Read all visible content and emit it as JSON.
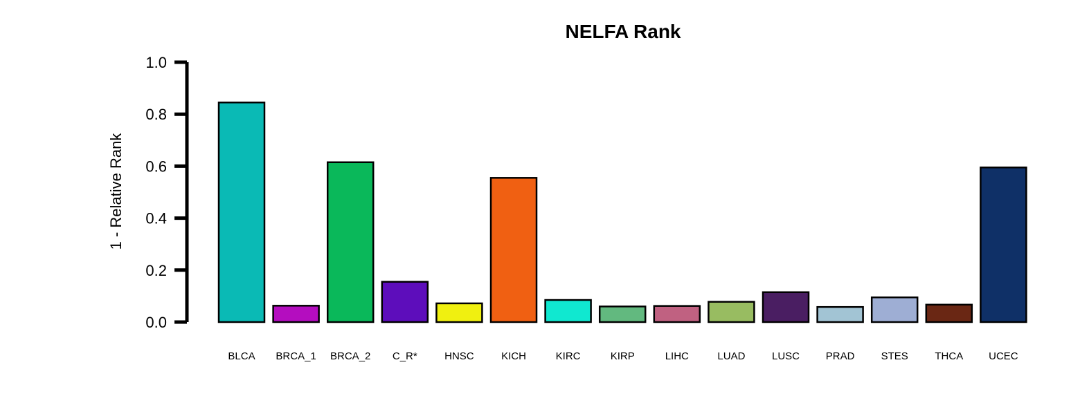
{
  "chart_data": {
    "type": "bar",
    "title": "NELFA Rank",
    "xlabel": "",
    "ylabel": "1 - Relative Rank",
    "ylim": [
      0,
      1.0
    ],
    "yticks": [
      "0.0",
      "0.2",
      "0.4",
      "0.6",
      "0.8",
      "1.0"
    ],
    "grid": false,
    "categories": [
      "BLCA",
      "BRCA_1",
      "BRCA_2",
      "C_R*",
      "HNSC",
      "KICH",
      "KIRC",
      "KIRP",
      "LIHC",
      "LUAD",
      "LUSC",
      "PRAD",
      "STES",
      "THCA",
      "UCEC"
    ],
    "values": [
      0.845,
      0.063,
      0.615,
      0.155,
      0.072,
      0.555,
      0.085,
      0.06,
      0.062,
      0.078,
      0.115,
      0.058,
      0.095,
      0.067,
      0.595
    ],
    "colors": [
      "#0ABAB5",
      "#B40DBF",
      "#0AB85A",
      "#5D0DBB",
      "#F0F010",
      "#F06012",
      "#10E8D0",
      "#62B97F",
      "#C06181",
      "#98BC61",
      "#4A1E62",
      "#A2C4D4",
      "#9EAED4",
      "#6A2714",
      "#0F3067"
    ]
  }
}
